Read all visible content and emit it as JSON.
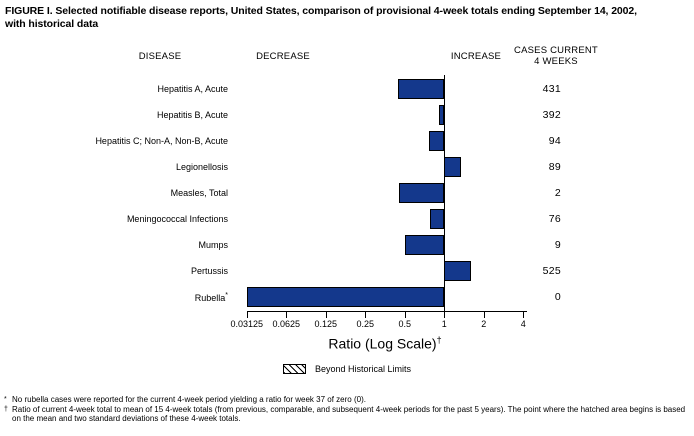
{
  "title": "FIGURE I. Selected notifiable disease reports, United States, comparison of provisional 4-week totals ending September 14, 2002, with historical data",
  "columns": {
    "disease": "DISEASE",
    "decrease": "DECREASE",
    "increase": "INCREASE",
    "cases_line1": "CASES CURRENT",
    "cases_line2": "4 WEEKS"
  },
  "chart_data": {
    "type": "bar",
    "orientation": "horizontal",
    "scale": "log",
    "baseline_ratio": 1,
    "xlim": [
      0.03125,
      4
    ],
    "axis_ticks": [
      0.03125,
      0.0625,
      0.125,
      0.25,
      0.5,
      1,
      2,
      4
    ],
    "axis_tick_labels": [
      "0.03125",
      "0.0625",
      "0.125",
      "0.25",
      "0.5",
      "1",
      "2",
      "4"
    ],
    "axis_label": "Ratio (Log Scale)",
    "axis_label_marker": "†",
    "bar_color": "#14388c",
    "rows": [
      {
        "disease": "Hepatitis A, Acute",
        "marker": "",
        "ratio": 0.44,
        "cases": "431"
      },
      {
        "disease": "Hepatitis B, Acute",
        "marker": "",
        "ratio": 0.91,
        "cases": "392"
      },
      {
        "disease": "Hepatitis C; Non-A, Non-B, Acute",
        "marker": "",
        "ratio": 0.76,
        "cases": "94"
      },
      {
        "disease": "Legionellosis",
        "marker": "",
        "ratio": 1.35,
        "cases": "89"
      },
      {
        "disease": "Measles, Total",
        "marker": "",
        "ratio": 0.45,
        "cases": "2"
      },
      {
        "disease": "Meningococcal Infections",
        "marker": "",
        "ratio": 0.78,
        "cases": "76"
      },
      {
        "disease": "Mumps",
        "marker": "",
        "ratio": 0.5,
        "cases": "9"
      },
      {
        "disease": "Pertussis",
        "marker": "",
        "ratio": 1.6,
        "cases": "525"
      },
      {
        "disease": "Rubella",
        "marker": "*",
        "ratio": 0,
        "cases": "0"
      }
    ]
  },
  "legend": {
    "label": "Beyond Historical Limits"
  },
  "footnotes": [
    {
      "marker": "*",
      "text": "No rubella cases were reported for the current 4-week period yielding a ratio for week 37 of zero (0)."
    },
    {
      "marker": "†",
      "text": "Ratio of current 4-week total to mean of 15 4-week totals (from previous, comparable, and subsequent 4-week periods for the past 5 years). The point where the hatched area begins is based on the mean and two standard deviations of these 4-week totals."
    }
  ]
}
